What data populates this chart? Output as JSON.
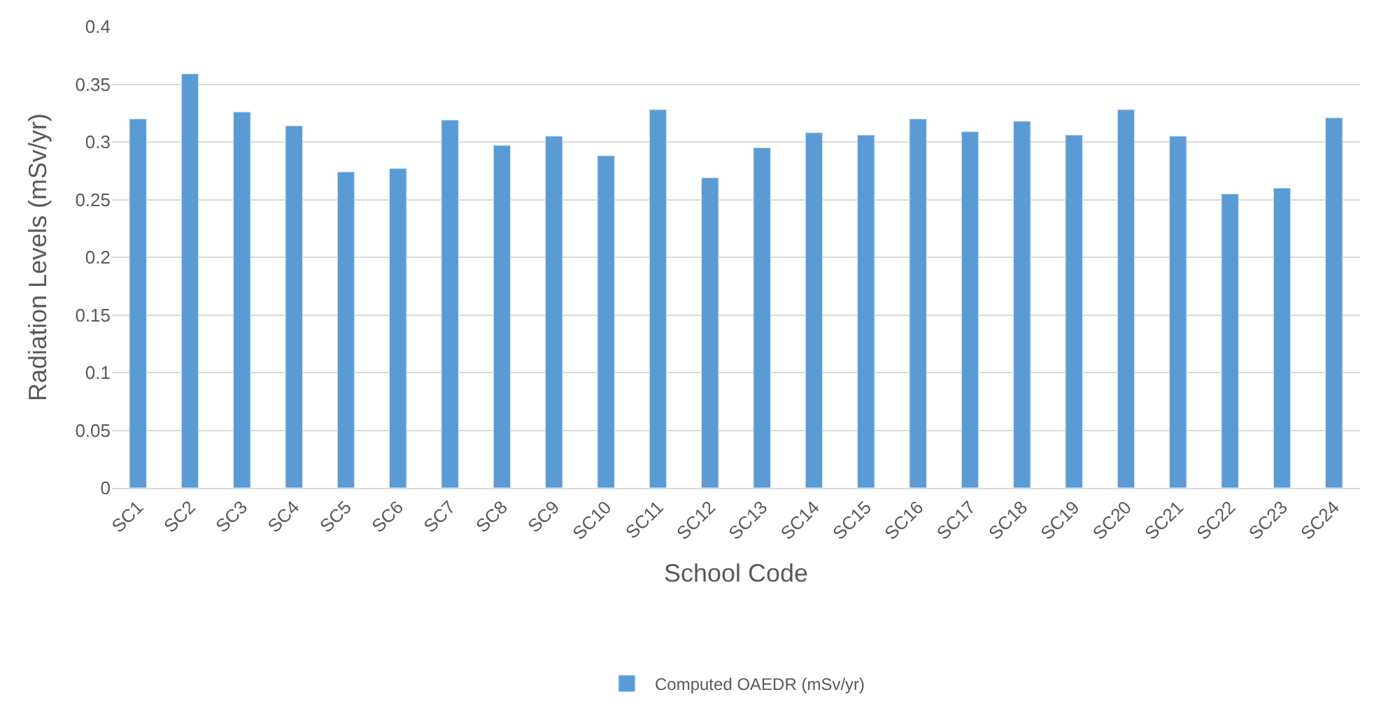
{
  "chart_data": {
    "type": "bar",
    "xlabel": "School Code",
    "ylabel": "Radiation Levels (mSv/yr)",
    "categories": [
      "SC1",
      "SC2",
      "SC3",
      "SC4",
      "SC5",
      "SC6",
      "SC7",
      "SC8",
      "SC9",
      "SC10",
      "SC11",
      "SC12",
      "SC13",
      "SC14",
      "SC15",
      "SC16",
      "SC17",
      "SC18",
      "SC19",
      "SC20",
      "SC21",
      "SC22",
      "SC23",
      "SC24"
    ],
    "series": [
      {
        "name": "Computed OAEDR (mSv/yr)",
        "color": "#5b9bd5",
        "values": [
          0.32,
          0.359,
          0.326,
          0.314,
          0.274,
          0.277,
          0.319,
          0.297,
          0.305,
          0.288,
          0.328,
          0.269,
          0.295,
          0.308,
          0.306,
          0.32,
          0.309,
          0.318,
          0.306,
          0.328,
          0.305,
          0.255,
          0.26,
          0.321
        ]
      }
    ],
    "ylim": [
      0,
      0.4
    ],
    "yticks": [
      0,
      0.05,
      0.1,
      0.15,
      0.2,
      0.25,
      0.3,
      0.35,
      0.4
    ],
    "grid": "y",
    "legend": "bottom"
  }
}
